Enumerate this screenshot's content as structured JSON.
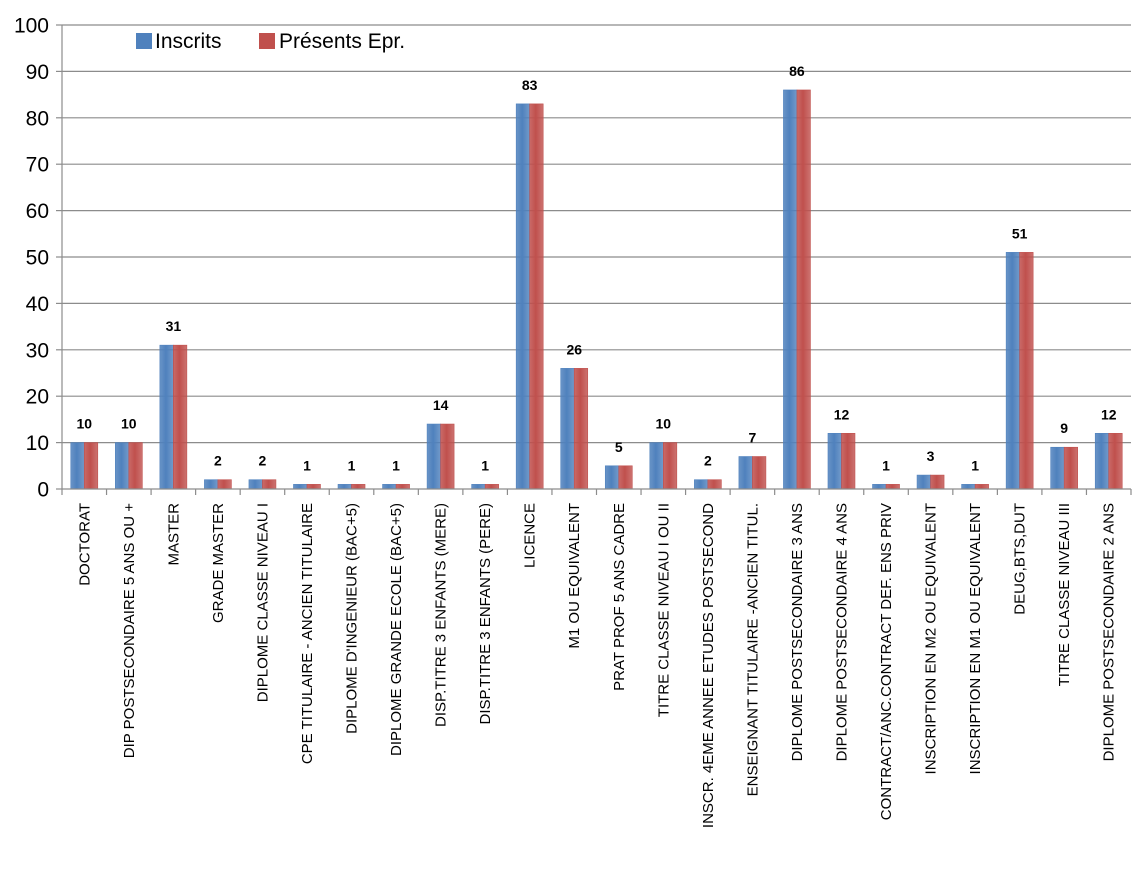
{
  "chart_data": {
    "type": "bar",
    "categories": [
      "DOCTORAT",
      "DIP POSTSECONDAIRE 5 ANS OU +",
      "MASTER",
      "GRADE MASTER",
      "DIPLOME CLASSE NIVEAU I",
      "CPE TITULAIRE - ANCIEN TITULAIRE",
      "DIPLOME D'INGENIEUR (BAC+5)",
      "DIPLOME GRANDE ECOLE (BAC+5)",
      "DISP.TITRE 3 ENFANTS (MERE)",
      "DISP.TITRE 3 ENFANTS (PERE)",
      "LICENCE",
      "M1 OU EQUIVALENT",
      "PRAT PROF 5 ANS CADRE",
      "TITRE CLASSE NIVEAU I OU II",
      "INSCR. 4EME ANNEE ETUDES POSTSECOND",
      "ENSEIGNANT TITULAIRE -ANCIEN TITUL.",
      "DIPLOME POSTSECONDAIRE 3 ANS",
      "DIPLOME POSTSECONDAIRE 4 ANS",
      "CONTRACT/ANC.CONTRACT DEF. ENS PRIV",
      "INSCRIPTION EN M2 OU EQUIVALENT",
      "INSCRIPTION EN M1 OU EQUIVALENT",
      "DEUG,BTS,DUT",
      "TITRE CLASSE NIVEAU III",
      "DIPLOME POSTSECONDAIRE 2 ANS"
    ],
    "series": [
      {
        "name": "Inscrits",
        "color": "#4f81bd",
        "values": [
          10,
          10,
          31,
          2,
          2,
          1,
          1,
          1,
          14,
          1,
          83,
          26,
          5,
          10,
          2,
          7,
          86,
          12,
          1,
          3,
          1,
          51,
          9,
          12
        ]
      },
      {
        "name": "Présents Epr.",
        "color": "#c0504d",
        "values": [
          10,
          10,
          31,
          2,
          2,
          1,
          1,
          1,
          14,
          1,
          83,
          26,
          5,
          10,
          2,
          7,
          86,
          12,
          1,
          3,
          1,
          51,
          9,
          12
        ]
      }
    ],
    "data_labels": [
      "10",
      "10",
      "31",
      "2",
      "2",
      "1",
      "1",
      "1",
      "14",
      "1",
      "83",
      "26",
      "5",
      "10",
      "2",
      "7",
      "86",
      "12",
      "1",
      "3",
      "1",
      "51",
      "9",
      "12"
    ],
    "yticks": [
      "0",
      "10",
      "20",
      "30",
      "40",
      "50",
      "60",
      "70",
      "80",
      "90",
      "100"
    ],
    "ylim": [
      0,
      100
    ],
    "title": "",
    "xlabel": "",
    "ylabel": "",
    "grid": true,
    "legend_position": "top-left"
  }
}
